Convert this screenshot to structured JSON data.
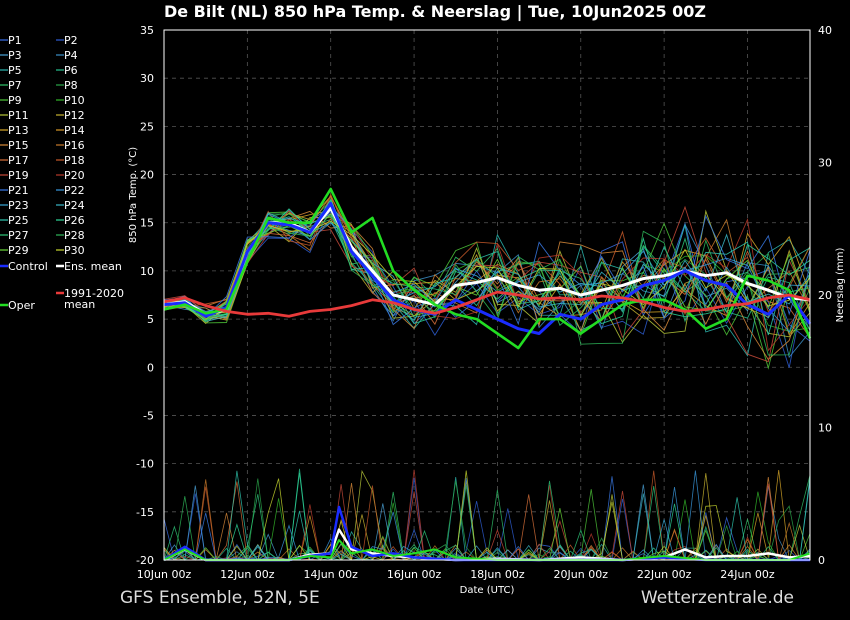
{
  "title": "De Bilt  (NL)  850 hPa Temp. & Neerslag | Tue, 10Jun2025 00Z",
  "footer_left": "GFS Ensemble, 52N, 5E",
  "footer_right": "Wetterzentrale.de",
  "chart_data": {
    "type": "line",
    "ylabel": "850 hPa Temp. (°C)",
    "y2label": "Neerslag (mm)",
    "xlabel": "Date (UTC)",
    "ylim": [
      -20,
      35
    ],
    "y2lim": [
      0,
      40
    ],
    "xlim_days": [
      0,
      15.5
    ],
    "yticks": [
      "35",
      "30",
      "25",
      "20",
      "15",
      "10",
      "5",
      "0",
      "-5",
      "-10",
      "-15",
      "-20"
    ],
    "y2ticks": [
      "40",
      "30",
      "20",
      "10",
      "0"
    ],
    "xticks": [
      "10Jun 00z",
      "12Jun 00z",
      "14Jun 00z",
      "16Jun 00z",
      "18Jun 00z",
      "20Jun 00z",
      "22Jun 00z",
      "24Jun 00z"
    ],
    "grid": true,
    "legend": [
      {
        "name": "P1",
        "color": "#3a6fe8"
      },
      {
        "name": "P2",
        "color": "#2e5fd6"
      },
      {
        "name": "P3",
        "color": "#4aa3d8"
      },
      {
        "name": "P4",
        "color": "#3b8fc8"
      },
      {
        "name": "P5",
        "color": "#2cb8b0"
      },
      {
        "name": "P6",
        "color": "#27c28f"
      },
      {
        "name": "P7",
        "color": "#31c46a"
      },
      {
        "name": "P8",
        "color": "#2aa84a"
      },
      {
        "name": "P9",
        "color": "#4fc93a"
      },
      {
        "name": "P10",
        "color": "#33b82a"
      },
      {
        "name": "P11",
        "color": "#b9c93a"
      },
      {
        "name": "P12",
        "color": "#c9b530"
      },
      {
        "name": "P13",
        "color": "#d8a828"
      },
      {
        "name": "P14",
        "color": "#d89a28"
      },
      {
        "name": "P15",
        "color": "#d88a3a"
      },
      {
        "name": "P16",
        "color": "#c87a2a"
      },
      {
        "name": "P17",
        "color": "#d8703a"
      },
      {
        "name": "P18",
        "color": "#c85a2a"
      },
      {
        "name": "P19",
        "color": "#c84a3a"
      },
      {
        "name": "P20",
        "color": "#b83a2a"
      },
      {
        "name": "P21",
        "color": "#3a7ae8"
      },
      {
        "name": "P22",
        "color": "#3a9ae0"
      },
      {
        "name": "P23",
        "color": "#3aa8d8"
      },
      {
        "name": "P24",
        "color": "#3ab8c8"
      },
      {
        "name": "P25",
        "color": "#2ec8b0"
      },
      {
        "name": "P26",
        "color": "#2ed89a"
      },
      {
        "name": "P27",
        "color": "#2ec87a"
      },
      {
        "name": "P28",
        "color": "#2eb85a"
      },
      {
        "name": "P29",
        "color": "#6ad83a"
      },
      {
        "name": "P30",
        "color": "#c8d82e"
      },
      {
        "name": "Control",
        "color": "#1a2cff"
      },
      {
        "name": "Ens. mean",
        "color": "#ffffff"
      },
      {
        "name": "Oper",
        "color": "#22dd22"
      },
      {
        "name": "1991-2020 mean",
        "color": "#e83a3a"
      }
    ],
    "series": [
      {
        "name": "Ens. mean",
        "axis": "temp",
        "color": "#ffffff",
        "x": [
          0,
          0.5,
          1,
          1.5,
          2,
          2.5,
          3,
          3.5,
          4,
          4.5,
          5,
          5.5,
          6,
          6.5,
          7,
          7.5,
          8,
          8.5,
          9,
          9.5,
          10,
          10.5,
          11,
          11.5,
          12,
          12.5,
          13,
          13.5,
          14,
          14.5,
          15,
          15.5
        ],
        "y": [
          6.5,
          6.8,
          5.5,
          6,
          12,
          15,
          15,
          14,
          16.5,
          12.5,
          10,
          7.5,
          7,
          6.5,
          8.5,
          8.8,
          9.3,
          8.5,
          8,
          8.2,
          7.5,
          8,
          8.5,
          9.2,
          9.5,
          10,
          9.5,
          9.8,
          8.7,
          8,
          7.2,
          7
        ]
      },
      {
        "name": "Control",
        "axis": "temp",
        "color": "#1a2cff",
        "x": [
          0,
          0.5,
          1,
          1.5,
          2,
          2.5,
          3,
          3.5,
          4,
          4.5,
          5,
          5.5,
          6,
          6.5,
          7,
          7.5,
          8,
          8.5,
          9,
          9.5,
          10,
          10.5,
          11,
          11.5,
          12,
          12.5,
          13,
          13.5,
          14,
          14.5,
          15,
          15.5
        ],
        "y": [
          6.5,
          6.7,
          5.3,
          6.2,
          12,
          15,
          14.8,
          14,
          17,
          12,
          9.5,
          7,
          6,
          5.5,
          7,
          6,
          5,
          4,
          3.5,
          5.5,
          5,
          6.5,
          7,
          8.5,
          9,
          10,
          9,
          8.5,
          6.5,
          5.5,
          7.5,
          4.5
        ]
      },
      {
        "name": "Oper",
        "axis": "temp",
        "color": "#22dd22",
        "x": [
          0,
          0.5,
          1,
          1.5,
          2,
          2.5,
          3,
          3.5,
          4,
          4.5,
          5,
          5.5,
          6,
          6.5,
          7,
          7.5,
          8,
          8.5,
          9,
          9.5,
          10,
          10.5,
          11,
          11.5,
          12,
          12.5,
          13,
          13.5,
          14,
          14.5,
          15,
          15.5
        ],
        "y": [
          6,
          6.5,
          5.6,
          6,
          11,
          15.5,
          15,
          15,
          18.5,
          14,
          15.5,
          10,
          8,
          6.5,
          5.5,
          5,
          3.5,
          2,
          5,
          5,
          3.5,
          5,
          6.5,
          7,
          7,
          6,
          4,
          5,
          9.5,
          9,
          8,
          3
        ]
      },
      {
        "name": "1991-2020 mean",
        "axis": "temp",
        "color": "#e83a3a",
        "x": [
          0,
          0.5,
          1,
          1.5,
          2,
          2.5,
          3,
          3.5,
          4,
          4.5,
          5,
          5.5,
          6,
          6.5,
          7,
          7.5,
          8,
          8.5,
          9,
          9.5,
          10,
          10.5,
          11,
          11.5,
          12,
          12.5,
          13,
          13.5,
          14,
          14.5,
          15,
          15.5
        ],
        "y": [
          6.8,
          7.2,
          6.4,
          5.8,
          5.5,
          5.6,
          5.3,
          5.8,
          6,
          6.4,
          7,
          6.7,
          6,
          5.6,
          6.2,
          7,
          7.8,
          7.5,
          7.1,
          7.2,
          7,
          7.4,
          7.2,
          6.8,
          6.2,
          5.8,
          6,
          6.4,
          6.6,
          7.2,
          7.5,
          7
        ]
      },
      {
        "name": "Ens. mean precip",
        "axis": "precip",
        "color": "#ffffff",
        "x": [
          0,
          0.5,
          1,
          2,
          3,
          3.5,
          4,
          4.2,
          4.5,
          5,
          5.5,
          6,
          6.5,
          7,
          8,
          9,
          10,
          11,
          12,
          12.5,
          13,
          13.5,
          14,
          14.5,
          15,
          15.5
        ],
        "y": [
          0,
          0.8,
          0,
          0,
          0,
          0.4,
          0.5,
          2.3,
          0.8,
          0.5,
          0.3,
          0.2,
          0.1,
          0,
          0.1,
          0,
          0.2,
          0,
          0.2,
          0.8,
          0.2,
          0.3,
          0.3,
          0.5,
          0.2,
          0.3
        ]
      },
      {
        "name": "Control precip",
        "axis": "precip",
        "color": "#1a2cff",
        "x": [
          0,
          0.5,
          1,
          2,
          3,
          3.5,
          4,
          4.2,
          4.5,
          5,
          5.5,
          6,
          7,
          8,
          9,
          10,
          11,
          12,
          13,
          14,
          15,
          15.5
        ],
        "y": [
          0,
          1,
          0,
          0,
          0,
          0.3,
          0.5,
          4,
          1,
          0.3,
          0.5,
          0.2,
          0,
          0,
          0,
          0,
          0,
          0.2,
          0,
          0,
          0,
          0
        ]
      },
      {
        "name": "Oper precip",
        "axis": "precip",
        "color": "#22dd22",
        "x": [
          0,
          0.5,
          1,
          2,
          3,
          3.5,
          4,
          4.2,
          4.5,
          5,
          5.5,
          6,
          6.5,
          7,
          8,
          9,
          10,
          11,
          12,
          13,
          14,
          15,
          15.5
        ],
        "y": [
          0,
          0.8,
          0,
          0,
          0,
          0.3,
          0.2,
          1.5,
          0.5,
          0.8,
          0.3,
          0.5,
          0.8,
          0.2,
          0,
          0,
          0,
          0,
          0.3,
          0,
          0,
          0,
          0.5
        ]
      }
    ]
  }
}
